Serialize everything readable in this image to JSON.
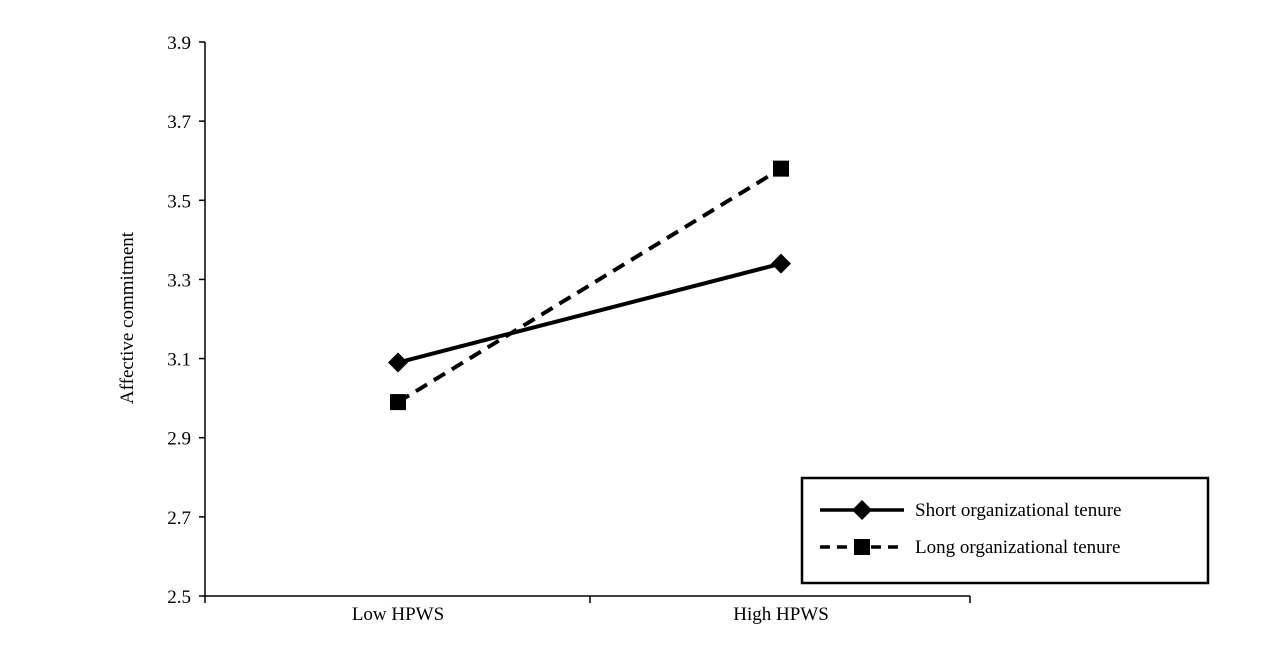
{
  "chart_data": {
    "type": "line",
    "categories": [
      "Low HPWS",
      "High HPWS"
    ],
    "ylabel": "Affective commitment",
    "xlabel": "",
    "ylim": [
      2.5,
      3.9
    ],
    "yticks": [
      "2.5",
      "2.7",
      "2.9",
      "3.1",
      "3.3",
      "3.5",
      "3.7",
      "3.9"
    ],
    "grid": false,
    "legend_position": "bottom-right",
    "series": [
      {
        "name": "Short organizational tenure",
        "values": [
          3.09,
          3.34
        ],
        "marker": "diamond",
        "line_style": "solid",
        "color": "#000000"
      },
      {
        "name": "Long organizational tenure",
        "values": [
          2.99,
          3.58
        ],
        "marker": "square",
        "line_style": "dashed",
        "color": "#000000"
      }
    ]
  }
}
